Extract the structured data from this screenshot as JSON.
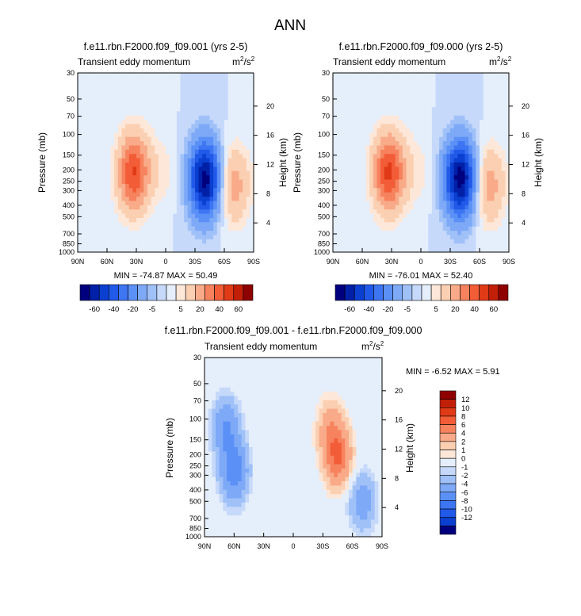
{
  "page_title": "ANN",
  "chart_data": [
    {
      "type": "heatmap",
      "title": "f.e11.rbn.F2000.f09_f09.001 (yrs 2-5)",
      "left_string": "Transient eddy momentum",
      "units": "m2/s2",
      "units_base": "m",
      "units_mid": "/s",
      "units_exp": "2",
      "ylabel": "Pressure (mb)",
      "ylabel_right": "Height (km)",
      "x_ticks": [
        "90N",
        "60N",
        "30N",
        "0",
        "30S",
        "60S",
        "90S"
      ],
      "y_ticks": [
        "30",
        "50",
        "70",
        "100",
        "150",
        "200",
        "250",
        "300",
        "400",
        "500",
        "700",
        "850",
        "1000"
      ],
      "y_ticks_right": [
        "20",
        "16",
        "12",
        "8",
        "4"
      ],
      "min_max": "MIN = -74.87  MAX = 50.49",
      "features": [
        {
          "lat": 33,
          "p": 210,
          "value": 50.5
        },
        {
          "lat": -40,
          "p": 240,
          "value": -74.9
        },
        {
          "lat": -70,
          "p": 270,
          "value": 25
        },
        {
          "lat": 5,
          "p": 200,
          "value": 7
        }
      ]
    },
    {
      "type": "heatmap",
      "title": "f.e11.rbn.F2000.f09_f09.000 (yrs 2-5)",
      "left_string": "Transient eddy momentum",
      "units": "m2/s2",
      "units_base": "m",
      "units_mid": "/s",
      "units_exp": "2",
      "ylabel": "Pressure (mb)",
      "ylabel_right": "Height (km)",
      "x_ticks": [
        "90N",
        "60N",
        "30N",
        "0",
        "30S",
        "60S",
        "90S"
      ],
      "y_ticks": [
        "30",
        "50",
        "70",
        "100",
        "150",
        "200",
        "250",
        "300",
        "400",
        "500",
        "700",
        "850",
        "1000"
      ],
      "y_ticks_right": [
        "20",
        "16",
        "12",
        "8",
        "4"
      ],
      "min_max": "MIN = -76.01  MAX = 52.40",
      "features": [
        {
          "lat": 33,
          "p": 210,
          "value": 52.4
        },
        {
          "lat": -40,
          "p": 240,
          "value": -76.0
        },
        {
          "lat": -70,
          "p": 270,
          "value": 25
        },
        {
          "lat": 5,
          "p": 200,
          "value": 7
        }
      ]
    },
    {
      "type": "heatmap",
      "title": "f.e11.rbn.F2000.f09_f09.001 - f.e11.rbn.F2000.f09_f09.000",
      "left_string": "Transient eddy momentum",
      "units": "m2/s2",
      "units_base": "m",
      "units_mid": "/s",
      "units_exp": "2",
      "ylabel": "Pressure (mb)",
      "ylabel_right": "Height (km)",
      "x_ticks": [
        "90N",
        "60N",
        "30N",
        "0",
        "30S",
        "60S",
        "90S"
      ],
      "y_ticks": [
        "30",
        "50",
        "70",
        "100",
        "150",
        "200",
        "250",
        "300",
        "400",
        "500",
        "700",
        "850",
        "1000"
      ],
      "y_ticks_right": [
        "20",
        "16",
        "12",
        "8",
        "4"
      ],
      "min_max": "MIN = -6.52  MAX =  5.91",
      "features": [
        {
          "lat": -45,
          "p": 210,
          "value": 5.9
        },
        {
          "lat": -38,
          "p": 120,
          "value": 3
        },
        {
          "lat": 60,
          "p": 280,
          "value": -5.5
        },
        {
          "lat": 68,
          "p": 120,
          "value": -4
        },
        {
          "lat": -70,
          "p": 500,
          "value": -3
        }
      ]
    }
  ],
  "colorbar_top": {
    "labels": [
      "-60",
      "-40",
      "-20",
      "-5",
      "5",
      "20",
      "40",
      "60"
    ],
    "colors": [
      "#00007f",
      "#0020a8",
      "#0a3fd0",
      "#2159e8",
      "#3d75f2",
      "#5b91f6",
      "#7ea9f7",
      "#a0c1f8",
      "#c6d9fa",
      "#e5eefb",
      "#fde7d8",
      "#fbcfb1",
      "#f9aa88",
      "#f6825e",
      "#f25c36",
      "#e03a16",
      "#c21f08",
      "#8f0000"
    ]
  },
  "colorbar_diff": {
    "labels": [
      "12",
      "10",
      "8",
      "6",
      "4",
      "2",
      "1",
      "0",
      "-1",
      "-2",
      "-4",
      "-6",
      "-8",
      "-10",
      "-12"
    ],
    "colors": [
      "#8f0000",
      "#c21f08",
      "#e03a16",
      "#f25c36",
      "#f6825e",
      "#f9aa88",
      "#fbcfb1",
      "#fde7d8",
      "#e5eefb",
      "#c6d9fa",
      "#a0c1f8",
      "#7ea9f7",
      "#5b91f6",
      "#3d75f2",
      "#2159e8",
      "#0a3fd0",
      "#00007f"
    ]
  }
}
